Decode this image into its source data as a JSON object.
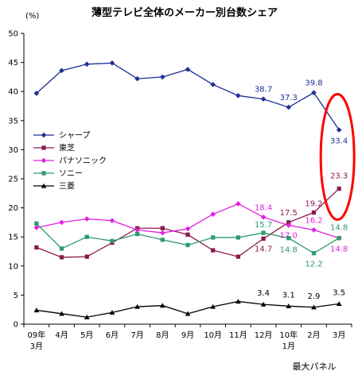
{
  "chart_data": {
    "type": "line",
    "title": "薄型テレビ全体のメーカー別台数シェア",
    "ylabel": "(%)",
    "source": "最大パネル",
    "ylim": [
      0,
      50
    ],
    "yticks": [
      "0",
      "5",
      "10",
      "15",
      "20",
      "25",
      "30",
      "35",
      "40",
      "45",
      "50"
    ],
    "categories": [
      "09年 3月",
      "4月",
      "5月",
      "6月",
      "7月",
      "8月",
      "9月",
      "10月",
      "11月",
      "12月",
      "10年 1月",
      "2月",
      "3月"
    ],
    "x_tick_labels": [
      {
        "line1": "09年",
        "line2": "3月"
      },
      {
        "line1": "4月",
        "line2": ""
      },
      {
        "line1": "5月",
        "line2": ""
      },
      {
        "line1": "6月",
        "line2": ""
      },
      {
        "line1": "7月",
        "line2": ""
      },
      {
        "line1": "8月",
        "line2": ""
      },
      {
        "line1": "9月",
        "line2": ""
      },
      {
        "line1": "10月",
        "line2": ""
      },
      {
        "line1": "11月",
        "line2": ""
      },
      {
        "line1": "12月",
        "line2": ""
      },
      {
        "line1": "10年",
        "line2": "1月"
      },
      {
        "line1": "2月",
        "line2": ""
      },
      {
        "line1": "3月",
        "line2": ""
      }
    ],
    "legend_position": "left",
    "grid": false,
    "series": [
      {
        "name": "シャープ",
        "color": "#1f2f96",
        "marker": "diamond",
        "values": [
          39.7,
          43.6,
          44.7,
          44.9,
          42.2,
          42.5,
          43.8,
          41.2,
          39.3,
          38.7,
          37.3,
          39.8,
          33.4
        ],
        "labels": [
          {
            "index": 9,
            "text": "38.7"
          },
          {
            "index": 10,
            "text": "37.3"
          },
          {
            "index": 11,
            "text": "39.8"
          },
          {
            "index": 12,
            "text": "33.4"
          }
        ]
      },
      {
        "name": "東芝",
        "color": "#8b1a4f",
        "marker": "square",
        "values": [
          13.2,
          11.5,
          11.6,
          14.0,
          16.5,
          16.5,
          15.4,
          12.7,
          11.6,
          14.7,
          17.5,
          19.2,
          23.3
        ],
        "labels": [
          {
            "index": 9,
            "text": "14.7"
          },
          {
            "index": 10,
            "text": "17.5"
          },
          {
            "index": 11,
            "text": "19.2"
          },
          {
            "index": 12,
            "text": "23.3"
          }
        ]
      },
      {
        "name": "パナソニック",
        "color": "#e020e0",
        "marker": "diamond",
        "values": [
          16.6,
          17.5,
          18.1,
          17.8,
          16.2,
          15.7,
          16.4,
          18.9,
          20.7,
          18.4,
          17.0,
          16.2,
          14.8
        ],
        "labels": [
          {
            "index": 9,
            "text": "18.4"
          },
          {
            "index": 10,
            "text": "17.0"
          },
          {
            "index": 11,
            "text": "16.2"
          },
          {
            "index": 12,
            "text": "14.8"
          }
        ]
      },
      {
        "name": "ソニー",
        "color": "#2e9a6e",
        "marker": "square",
        "values": [
          17.3,
          13.0,
          15.0,
          14.3,
          15.5,
          14.5,
          13.6,
          14.9,
          14.9,
          15.7,
          14.8,
          12.2,
          14.8
        ],
        "labels": [
          {
            "index": 9,
            "text": "15.7"
          },
          {
            "index": 10,
            "text": "14.8"
          },
          {
            "index": 11,
            "text": "12.2"
          },
          {
            "index": 12,
            "text": "14.8"
          }
        ]
      },
      {
        "name": "三菱",
        "color": "#000000",
        "marker": "triangle",
        "values": [
          2.4,
          1.8,
          1.2,
          2.0,
          3.0,
          3.2,
          1.8,
          3.0,
          3.9,
          3.4,
          3.1,
          2.9,
          3.5
        ],
        "labels": [
          {
            "index": 9,
            "text": "3.4"
          },
          {
            "index": 10,
            "text": "3.1"
          },
          {
            "index": 11,
            "text": "2.9"
          },
          {
            "index": 12,
            "text": "3.5"
          }
        ]
      }
    ],
    "annotation": {
      "type": "ellipse",
      "color": "#ff0000",
      "around_index": 12
    }
  }
}
